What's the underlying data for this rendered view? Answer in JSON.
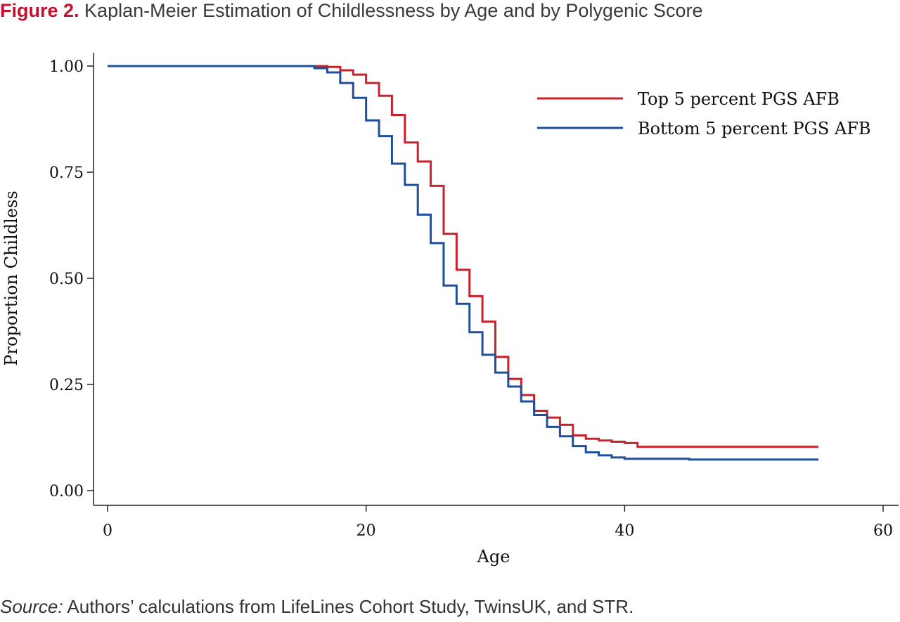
{
  "figure": {
    "number": "Figure 2.",
    "title": "Kaplan-Meier Estimation of Childlessness by Age and by Polygenic Score"
  },
  "source": {
    "label": "Source:",
    "text": "Authors’ calculations from LifeLines Cohort Study, TwinsUK, and STR."
  },
  "chart_data": {
    "type": "line",
    "step": true,
    "xlabel": "Age",
    "ylabel": "Proportion Childless",
    "xlim": [
      0,
      60
    ],
    "ylim": [
      0,
      1
    ],
    "xticks": [
      0,
      20,
      40,
      60
    ],
    "yticks": [
      0,
      0.25,
      0.5,
      0.75,
      1.0
    ],
    "xtick_labels": [
      "0",
      "20",
      "40",
      "60"
    ],
    "ytick_labels": [
      "0.00",
      "0.25",
      "0.50",
      "0.75",
      "1.00"
    ],
    "grid": false,
    "legend_position": "top-right",
    "series": [
      {
        "name": "Top 5 percent PGS AFB",
        "color": "#c8222c",
        "x": [
          0,
          17,
          18,
          19,
          20,
          21,
          22,
          23,
          24,
          25,
          26,
          27,
          28,
          29,
          30,
          31,
          32,
          33,
          34,
          35,
          36,
          37,
          38,
          39,
          40,
          41,
          55
        ],
        "y": [
          1.0,
          0.998,
          0.99,
          0.98,
          0.96,
          0.93,
          0.885,
          0.82,
          0.775,
          0.718,
          0.605,
          0.52,
          0.458,
          0.398,
          0.315,
          0.263,
          0.225,
          0.188,
          0.172,
          0.155,
          0.13,
          0.122,
          0.118,
          0.115,
          0.112,
          0.103,
          0.103
        ]
      },
      {
        "name": "Bottom 5 percent PGS AFB",
        "color": "#1f4e9c",
        "x": [
          0,
          16,
          17,
          18,
          19,
          20,
          21,
          22,
          23,
          24,
          25,
          26,
          27,
          28,
          29,
          30,
          31,
          32,
          33,
          34,
          35,
          36,
          37,
          38,
          39,
          40,
          45,
          55
        ],
        "y": [
          1.0,
          0.995,
          0.985,
          0.96,
          0.925,
          0.872,
          0.835,
          0.77,
          0.72,
          0.65,
          0.583,
          0.483,
          0.44,
          0.373,
          0.32,
          0.278,
          0.245,
          0.21,
          0.178,
          0.15,
          0.128,
          0.105,
          0.09,
          0.083,
          0.078,
          0.075,
          0.073,
          0.073
        ]
      }
    ]
  }
}
